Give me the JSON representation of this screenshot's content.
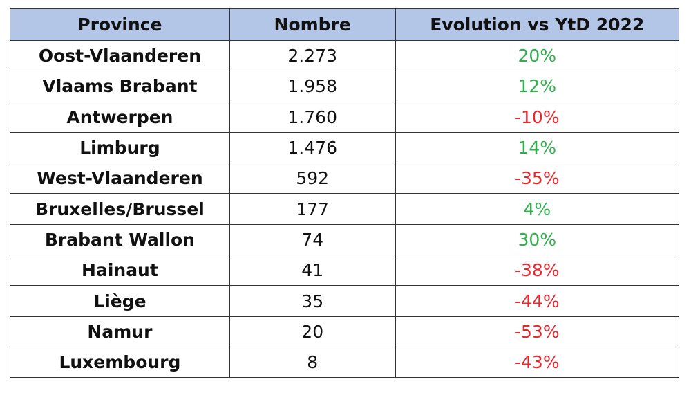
{
  "table": {
    "header": [
      "Province",
      "Nombre",
      "Evolution vs YtD 2022"
    ],
    "rows": [
      [
        "Oost-Vlaanderen",
        "2.273",
        "20%"
      ],
      [
        "Vlaams Brabant",
        "1.958",
        "12%"
      ],
      [
        "Antwerpen",
        "1.760",
        "-10%"
      ],
      [
        "Limburg",
        "1.476",
        "14%"
      ],
      [
        "West-Vlaanderen",
        "592",
        "-35%"
      ],
      [
        "Bruxelles/Brussel",
        "177",
        "4%"
      ],
      [
        "Brabant Wallon",
        "74",
        "30%"
      ],
      [
        "Hainaut",
        "41",
        "-38%"
      ],
      [
        "Liège",
        "35",
        "-44%"
      ],
      [
        "Namur",
        "20",
        "-53%"
      ],
      [
        "Luxembourg",
        "8",
        "-43%"
      ]
    ],
    "colors": {
      "positive": "#2eb04b",
      "negative": "#e8262b"
    }
  }
}
